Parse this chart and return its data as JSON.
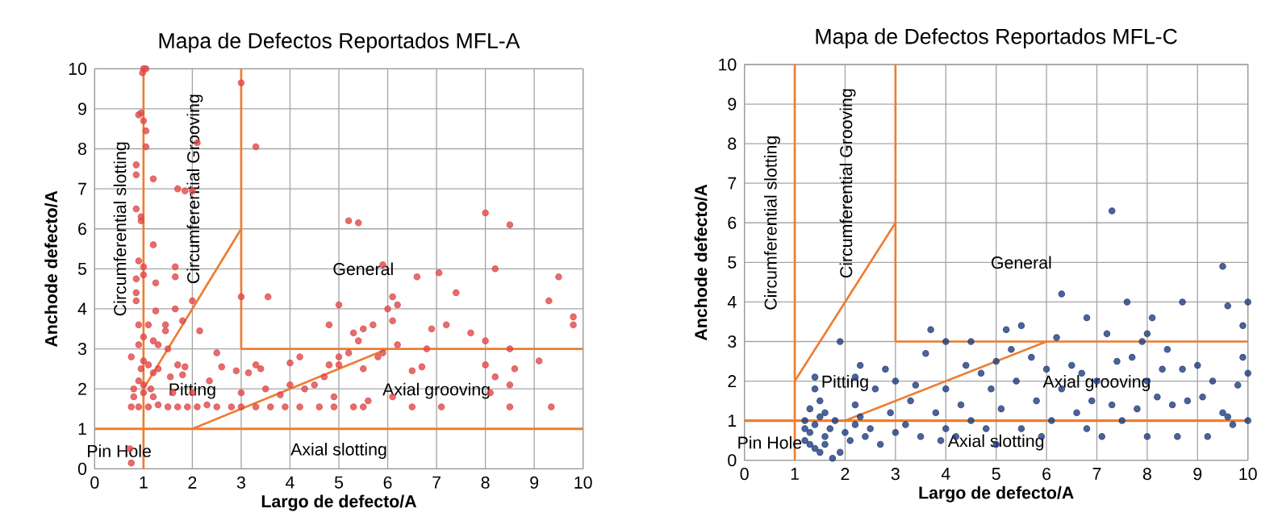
{
  "chart_data": [
    {
      "type": "scatter",
      "title": "Mapa de Defectos Reportados MFL-A",
      "xlabel": "Largo de defecto/A",
      "ylabel": "Anchode defecto/A",
      "xlim": [
        0,
        10
      ],
      "ylim": [
        0,
        10
      ],
      "xticks": [
        0,
        1,
        2,
        3,
        4,
        5,
        6,
        7,
        8,
        9,
        10
      ],
      "yticks": [
        0,
        1,
        2,
        3,
        4,
        5,
        6,
        7,
        8,
        9,
        10
      ],
      "grid": true,
      "annotations": [
        "Pin Hole",
        "Axial slotting",
        "Pitting",
        "Axial grooving",
        "General",
        "Circumferential slotting",
        "Circumferential Grooving"
      ],
      "ref_lines": [
        {
          "axis": "y",
          "value": 1,
          "color": "#ed7d31"
        }
      ],
      "series": [
        {
          "type": "scatter",
          "marker": "circle",
          "color": "#e04848",
          "x": [
            1.0,
            1.05,
            0.98,
            0.95,
            0.9,
            1.0,
            1.05,
            1.05,
            0.85,
            0.85,
            1.2,
            0.95,
            0.95,
            0.85,
            1.2,
            0.9,
            1.0,
            0.85,
            1.0,
            1.25,
            0.85,
            0.85,
            1.25,
            0.9,
            1.1,
            1.0,
            0.9,
            1.2,
            1.3,
            0.75,
            1.0,
            0.95,
            1.1,
            1.2,
            1.3,
            0.8,
            0.9,
            1.0,
            1.15,
            0.8,
            1.0,
            1.2,
            0.75,
            0.9,
            1.1,
            1.3,
            1.5,
            1.7,
            1.9,
            2.1,
            0.72,
            0.75,
            1.7,
            1.85,
            2.0,
            2.1,
            1.65,
            1.65,
            1.65,
            2.0,
            1.45,
            1.45,
            1.8,
            2.15,
            1.5,
            1.7,
            1.85,
            1.55,
            1.8,
            2.5,
            2.35,
            2.6,
            2.9,
            1.6,
            2.0,
            2.3,
            2.5,
            2.8,
            3.0,
            3.3,
            3.6,
            3.9,
            4.2,
            4.6,
            4.9,
            5.3,
            5.5,
            6.5,
            7.1,
            8.5,
            9.35,
            3.0,
            3.3,
            3.0,
            3.55,
            3.15,
            3.3,
            3.4,
            3.0,
            3.5,
            3.8,
            4.0,
            4.0,
            4.2,
            4.3,
            4.5,
            4.7,
            4.8,
            4.8,
            5.0,
            5.0,
            5.0,
            5.2,
            5.3,
            5.4,
            5.5,
            5.5,
            5.7,
            5.8,
            5.9,
            5.2,
            5.4,
            6.0,
            6.1,
            6.1,
            6.2,
            6.2,
            6.5,
            6.6,
            6.7,
            6.8,
            6.9,
            7.05,
            7.2,
            7.4,
            7.7,
            8.0,
            8.0,
            8.0,
            8.1,
            8.2,
            8.2,
            8.5,
            8.5,
            8.5,
            8.6,
            9.1,
            9.3,
            9.5,
            9.8,
            9.8,
            4.9,
            5.6,
            6.1,
            5.9
          ],
          "values": [
            10,
            10,
            9.9,
            8.9,
            8.85,
            8.7,
            8.45,
            8.05,
            7.6,
            7.35,
            7.25,
            6.3,
            6.2,
            6.5,
            5.6,
            5.2,
            5.05,
            4.75,
            4.85,
            4.65,
            4.4,
            4.2,
            3.95,
            3.6,
            3.6,
            3.3,
            3.1,
            3.2,
            3.1,
            2.8,
            2.7,
            2.5,
            2.6,
            2.4,
            2.5,
            2.0,
            2.2,
            2.1,
            2.0,
            1.8,
            1.9,
            1.8,
            1.55,
            1.55,
            1.55,
            1.6,
            1.55,
            1.55,
            1.55,
            1.55,
            0.5,
            0.15,
            7.0,
            6.95,
            6.95,
            8.15,
            5.05,
            4.8,
            4.0,
            4.2,
            3.6,
            3.45,
            3.7,
            3.45,
            3.0,
            2.6,
            2.55,
            2.3,
            2.35,
            2.9,
            2.2,
            2.55,
            2.45,
            1.9,
            1.9,
            1.6,
            1.55,
            1.55,
            1.55,
            1.55,
            1.55,
            1.55,
            1.55,
            1.55,
            1.55,
            1.55,
            1.55,
            1.55,
            1.55,
            1.55,
            1.55,
            9.65,
            8.05,
            4.3,
            4.3,
            2.4,
            2.6,
            2.5,
            1.9,
            2.0,
            1.85,
            2.1,
            2.65,
            2.8,
            2.0,
            2.1,
            2.3,
            2.6,
            3.6,
            4.1,
            2.8,
            2.6,
            2.9,
            3.4,
            3.2,
            3.5,
            2.5,
            3.6,
            2.8,
            5.1,
            6.2,
            6.15,
            4.0,
            4.3,
            3.7,
            4.1,
            3.1,
            2.45,
            4.8,
            2.55,
            3.0,
            3.5,
            4.9,
            3.6,
            4.4,
            3.4,
            6.4,
            3.2,
            2.6,
            1.9,
            5.0,
            2.3,
            6.1,
            3.0,
            2.1,
            2.5,
            2.7,
            4.2,
            4.8,
            3.8,
            3.6,
            1.8,
            1.7,
            1.8,
            2.9
          ]
        },
        {
          "type": "line",
          "marker": "none",
          "color": "#ed7d31",
          "x": [
            1,
            1
          ],
          "values": [
            0,
            10
          ]
        },
        {
          "type": "line",
          "marker": "none",
          "color": "#ed7d31",
          "x": [
            3,
            3
          ],
          "values": [
            3,
            10
          ]
        },
        {
          "type": "line",
          "marker": "none",
          "color": "#ed7d31",
          "x": [
            3,
            10
          ],
          "values": [
            3,
            3
          ]
        },
        {
          "type": "line",
          "marker": "none",
          "color": "#ed7d31",
          "x": [
            1,
            3
          ],
          "values": [
            2,
            6
          ]
        },
        {
          "type": "line",
          "marker": "none",
          "color": "#ed7d31",
          "x": [
            2,
            6
          ],
          "values": [
            1,
            3
          ]
        }
      ]
    },
    {
      "type": "scatter",
      "title": "Mapa de Defectos Reportados MFL-C",
      "xlabel": "Largo de defecto/A",
      "ylabel": "Anchode defecto/A",
      "xlim": [
        0,
        10
      ],
      "ylim": [
        0,
        10
      ],
      "xticks": [
        0,
        1,
        2,
        3,
        4,
        5,
        6,
        7,
        8,
        9,
        10
      ],
      "yticks": [
        0,
        1,
        2,
        3,
        4,
        5,
        6,
        7,
        8,
        9,
        10
      ],
      "grid": true,
      "annotations": [
        "Pin Hole",
        "Axial slotting",
        "Pitting",
        "Axial grooving",
        "General",
        "Circumferential slotting",
        "Circumferential Grooving"
      ],
      "ref_lines": [
        {
          "axis": "y",
          "value": 1,
          "color": "#ed7d31"
        }
      ],
      "series": [
        {
          "type": "scatter",
          "marker": "circle",
          "color": "#1f3d7a",
          "x": [
            1.2,
            1.3,
            1.4,
            1.5,
            1.3,
            1.2,
            1.4,
            1.6,
            1.7,
            1.8,
            1.5,
            1.4,
            1.4,
            1.75,
            1.9,
            1.6,
            2.0,
            2.1,
            2.2,
            2.3,
            2.4,
            2.5,
            2.2,
            2.2,
            2.3,
            2.6,
            2.8,
            3.0,
            2.9,
            3.0,
            3.2,
            3.3,
            3.4,
            3.5,
            3.6,
            3.7,
            3.8,
            4.0,
            4.0,
            4.0,
            4.2,
            4.3,
            4.4,
            4.5,
            4.5,
            4.7,
            4.8,
            4.9,
            5.0,
            5.1,
            5.2,
            5.3,
            5.5,
            5.4,
            5.5,
            5.7,
            5.8,
            5.9,
            6.0,
            6.1,
            6.2,
            6.3,
            6.3,
            6.5,
            6.6,
            6.7,
            6.8,
            6.8,
            6.9,
            7.0,
            7.1,
            7.2,
            7.3,
            7.3,
            7.4,
            7.5,
            7.6,
            7.7,
            7.8,
            7.9,
            8.0,
            8.0,
            8.0,
            8.1,
            8.2,
            8.3,
            8.4,
            8.5,
            8.6,
            8.7,
            8.7,
            8.8,
            9.0,
            9.1,
            9.2,
            9.3,
            9.5,
            9.5,
            9.6,
            9.6,
            9.7,
            9.8,
            9.9,
            9.9,
            10.0,
            10.0,
            10.0,
            1.9,
            2.7,
            3.9,
            5.0,
            1.2,
            1.3,
            1.5,
            1.6
          ],
          "values": [
            0.5,
            0.7,
            0.9,
            1.1,
            1.3,
            1.0,
            0.3,
            0.6,
            0.8,
            1.0,
            1.5,
            1.8,
            2.1,
            0.05,
            3.0,
            0.4,
            0.7,
            0.5,
            0.9,
            1.1,
            0.6,
            0.8,
            1.4,
            2.1,
            2.4,
            1.8,
            2.3,
            2.0,
            1.2,
            0.7,
            0.9,
            1.5,
            1.9,
            0.6,
            2.7,
            3.3,
            1.2,
            3.0,
            1.8,
            0.8,
            0.6,
            1.4,
            2.4,
            3.0,
            1.0,
            2.2,
            0.8,
            1.8,
            2.5,
            1.3,
            3.3,
            2.8,
            3.4,
            2.0,
            0.8,
            2.6,
            1.5,
            0.6,
            2.3,
            1.0,
            3.1,
            4.2,
            1.8,
            2.4,
            1.2,
            2.2,
            3.6,
            0.8,
            1.5,
            2.0,
            0.6,
            3.2,
            6.3,
            1.4,
            2.5,
            1.0,
            4.0,
            2.6,
            1.3,
            3.0,
            3.2,
            2.0,
            0.6,
            3.6,
            1.6,
            2.3,
            2.8,
            1.4,
            0.6,
            4.0,
            2.3,
            1.5,
            2.4,
            1.6,
            0.6,
            2.0,
            4.9,
            1.2,
            3.9,
            1.1,
            0.9,
            1.9,
            3.4,
            2.6,
            4.0,
            2.2,
            1.0,
            0.2,
            0.4,
            0.5,
            0.4,
            0.8,
            0.4,
            0.2,
            1.2
          ]
        },
        {
          "type": "line",
          "marker": "none",
          "color": "#ed7d31",
          "x": [
            1,
            1
          ],
          "values": [
            0,
            10
          ]
        },
        {
          "type": "line",
          "marker": "none",
          "color": "#ed7d31",
          "x": [
            3,
            3
          ],
          "values": [
            3,
            10
          ]
        },
        {
          "type": "line",
          "marker": "none",
          "color": "#ed7d31",
          "x": [
            3,
            10
          ],
          "values": [
            3,
            3
          ]
        },
        {
          "type": "line",
          "marker": "none",
          "color": "#ed7d31",
          "x": [
            1,
            3
          ],
          "values": [
            2,
            6
          ]
        },
        {
          "type": "line",
          "marker": "none",
          "color": "#ed7d31",
          "x": [
            2,
            6
          ],
          "values": [
            1,
            3
          ]
        }
      ]
    }
  ]
}
